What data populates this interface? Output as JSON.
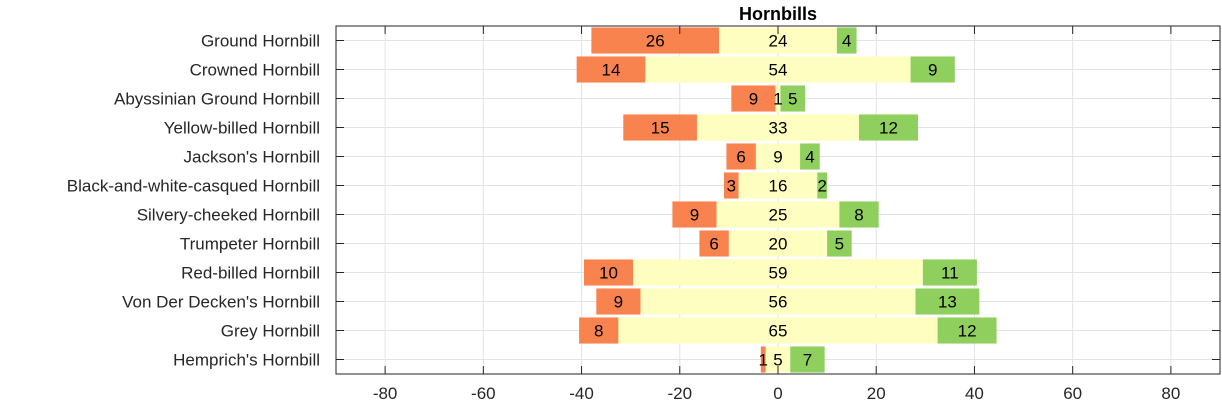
{
  "chart_data": {
    "type": "bar",
    "orientation": "horizontal",
    "stacked": "diverging",
    "title": "Hornbills",
    "xlabel": "",
    "ylabel": "",
    "xlim": [
      -90,
      90
    ],
    "x_ticks": [
      -80,
      -60,
      -40,
      -20,
      0,
      20,
      40,
      60,
      80
    ],
    "grid": true,
    "legend": "none",
    "categories": [
      "Ground Hornbill",
      "Crowned Hornbill",
      "Abyssinian Ground Hornbill",
      "Yellow-billed Hornbill",
      "Jackson's Hornbill",
      "Black-and-white-casqued Hornbill",
      "Silvery-cheeked Hornbill",
      "Trumpeter Hornbill",
      "Red-billed Hornbill",
      "Von Der Decken's Hornbill",
      "Grey Hornbill",
      "Hemprich's Hornbill"
    ],
    "series": [
      {
        "color": "#f8834f",
        "values": [
          26,
          14,
          9,
          15,
          6,
          3,
          9,
          6,
          10,
          9,
          8,
          1
        ]
      },
      {
        "color": "#fefec0",
        "values": [
          24,
          54,
          1,
          33,
          9,
          16,
          25,
          20,
          59,
          56,
          65,
          5
        ]
      },
      {
        "color": "#8fcf5d",
        "values": [
          4,
          9,
          5,
          12,
          4,
          2,
          8,
          5,
          11,
          13,
          12,
          7
        ]
      }
    ]
  }
}
